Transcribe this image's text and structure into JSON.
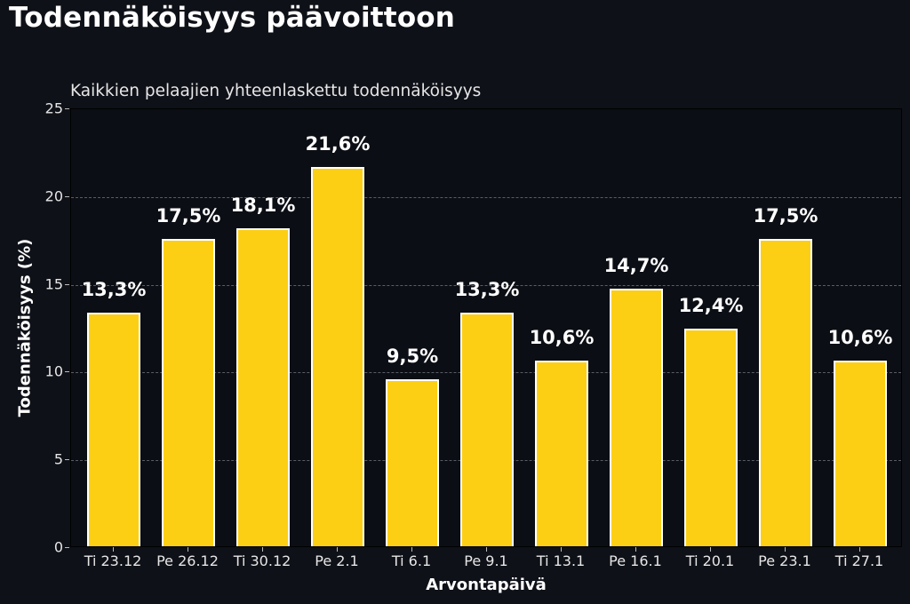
{
  "chart_data": {
    "type": "bar",
    "title": "Todennäköisyys päävoittoon",
    "subtitle": "Kaikkien pelaajien yhteenlaskettu todennäköisyys",
    "xlabel": "Arvontapäivä",
    "ylabel": "Todennäköisyys (%)",
    "ylim": [
      0,
      25
    ],
    "yticks": [
      0,
      5,
      10,
      15,
      20,
      25
    ],
    "grid": true,
    "bar_color": "#fccf14",
    "bar_edge_color": "#ffffff",
    "background": "#0f1118",
    "categories": [
      "Ti 23.12",
      "Pe 26.12",
      "Ti 30.12",
      "Pe 2.1",
      "Ti 6.1",
      "Pe 9.1",
      "Ti 13.1",
      "Pe 16.1",
      "Ti 20.1",
      "Pe 23.1",
      "Ti 27.1"
    ],
    "values": [
      13.3,
      17.5,
      18.1,
      21.6,
      9.5,
      13.3,
      10.6,
      14.7,
      12.4,
      17.5,
      10.6
    ],
    "value_labels": [
      "13,3%",
      "17,5%",
      "18,1%",
      "21,6%",
      "9,5%",
      "13,3%",
      "10,6%",
      "14,7%",
      "12,4%",
      "17,5%",
      "10,6%"
    ]
  }
}
